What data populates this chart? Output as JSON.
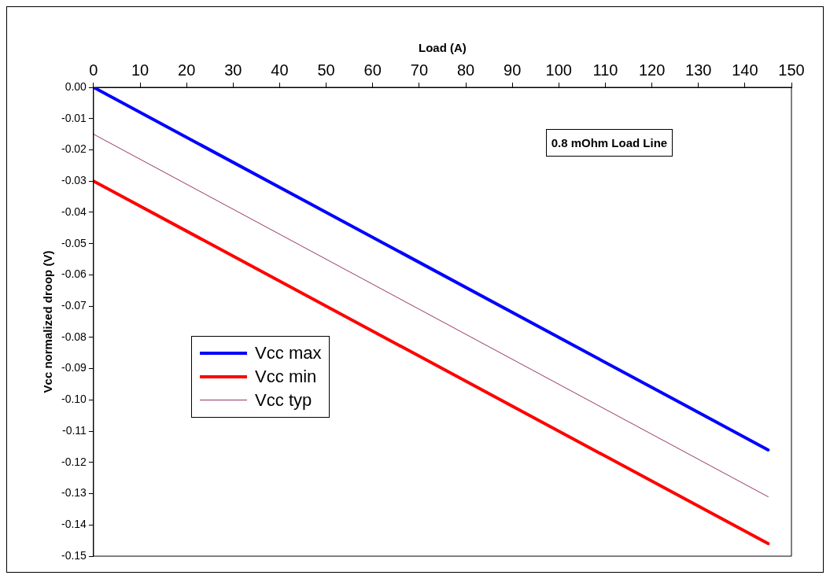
{
  "chart_data": {
    "type": "line",
    "xlabel": "Load (A)",
    "ylabel": "Vcc normalized droop (V)",
    "x": [
      0,
      145
    ],
    "series": [
      {
        "name": "Vcc max",
        "color": "#0000ff",
        "values": [
          0,
          -0.116
        ]
      },
      {
        "name": "Vcc min",
        "color": "#ff0000",
        "values": [
          -0.03,
          -0.146
        ]
      },
      {
        "name": "Vcc typ",
        "color": "#993366",
        "values": [
          -0.015,
          -0.131
        ]
      }
    ],
    "xlim": [
      0,
      150
    ],
    "xticks": [
      0,
      10,
      20,
      30,
      40,
      50,
      60,
      70,
      80,
      90,
      100,
      110,
      120,
      130,
      140,
      150
    ],
    "ylim": [
      -0.15,
      0
    ],
    "yticks": [
      {
        "value": 0,
        "label": "0.00"
      },
      {
        "value": -0.01,
        "label": "-0.01"
      },
      {
        "value": -0.02,
        "label": "-0.02"
      },
      {
        "value": -0.03,
        "label": "-0.03"
      },
      {
        "value": -0.04,
        "label": "-0.04"
      },
      {
        "value": -0.05,
        "label": "-0.05"
      },
      {
        "value": -0.06,
        "label": "-0.06"
      },
      {
        "value": -0.07,
        "label": "-0.07"
      },
      {
        "value": -0.08,
        "label": "-0.08"
      },
      {
        "value": -0.09,
        "label": "-0.09"
      },
      {
        "value": -0.1,
        "label": "-0.10"
      },
      {
        "value": -0.11,
        "label": "-0.11"
      },
      {
        "value": -0.12,
        "label": "-0.12"
      },
      {
        "value": -0.13,
        "label": "-0.13"
      },
      {
        "value": -0.14,
        "label": "-0.14"
      },
      {
        "value": -0.15,
        "label": "-0.15"
      }
    ],
    "annotations": [
      "0.8 mOhm Load Line"
    ],
    "grid": false,
    "legend": "left",
    "marker": "none",
    "line_style": "solid"
  }
}
